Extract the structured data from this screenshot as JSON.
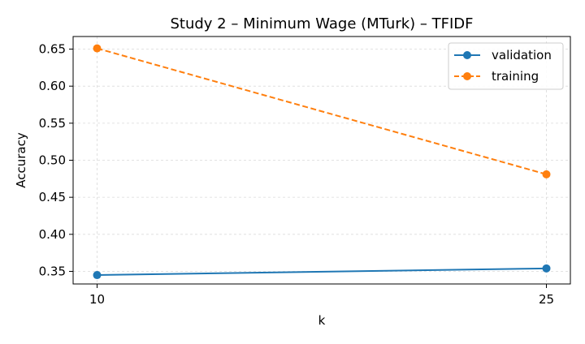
{
  "chart_data": {
    "type": "line",
    "title": "Study 2 – Minimum Wage (MTurk) – TFIDF",
    "xlabel": "k",
    "ylabel": "Accuracy",
    "x": [
      10,
      25
    ],
    "x_ticks": [
      "10",
      "25"
    ],
    "y_ticks": [
      "0.35",
      "0.40",
      "0.45",
      "0.50",
      "0.55",
      "0.60",
      "0.65"
    ],
    "ylim": [
      0.333,
      0.667
    ],
    "xlim": [
      9.2,
      25.8
    ],
    "grid": true,
    "legend_position": "top-right",
    "series": [
      {
        "name": "validation",
        "values": [
          0.345,
          0.354
        ],
        "color": "#1f77b4",
        "style": "solid",
        "marker": "circle"
      },
      {
        "name": "training",
        "values": [
          0.651,
          0.481
        ],
        "color": "#ff7f0e",
        "style": "dashed",
        "marker": "circle"
      }
    ]
  }
}
